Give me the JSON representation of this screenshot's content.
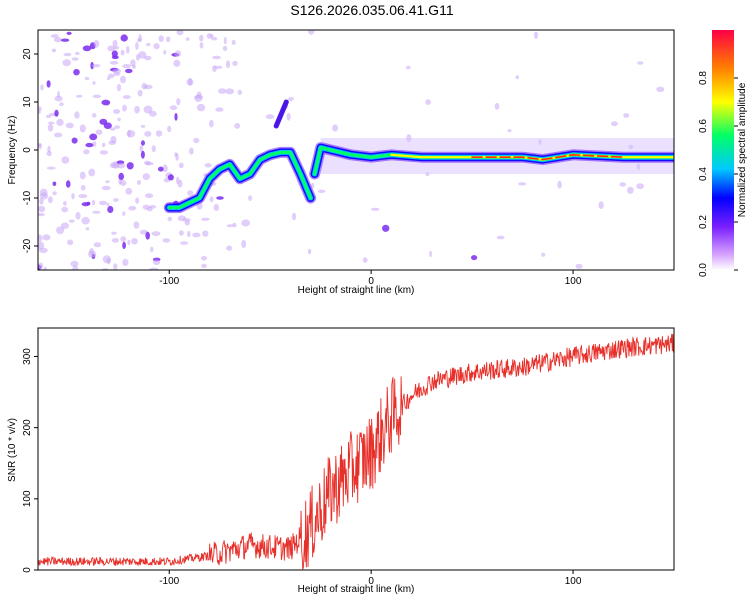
{
  "title": "S126.2026.035.06.41.G11",
  "chart_data": [
    {
      "type": "heatmap",
      "name": "spectrogram",
      "xlabel": "Height of straight line (km)",
      "ylabel": "Frequency (Hz)",
      "xlim": [
        -165,
        150
      ],
      "ylim": [
        -25,
        25
      ],
      "xticks": [
        -100,
        0,
        100
      ],
      "yticks": [
        -20,
        -10,
        0,
        10,
        20
      ],
      "colorbar": {
        "label": "Normalized spectral amplitude",
        "range": [
          0,
          1
        ],
        "ticks": [
          0.0,
          0.2,
          0.4,
          0.6,
          0.8
        ]
      },
      "ridge": {
        "x": [
          -100,
          -95,
          -90,
          -85,
          -80,
          -75,
          -70,
          -65,
          -60,
          -55,
          -50,
          -45,
          -40,
          -35,
          -30,
          -28,
          -25,
          -20,
          -10,
          0,
          10,
          25,
          50,
          75,
          85,
          100,
          125,
          150
        ],
        "y": [
          -12,
          -12,
          -11,
          -10,
          -6,
          -4,
          -3,
          -6,
          -5,
          -2,
          -1,
          -0.5,
          -0.5,
          -5,
          -10,
          -5,
          0.5,
          0,
          -1,
          -1.5,
          -1,
          -1.5,
          -1.5,
          -1.5,
          -2,
          -1,
          -1.5,
          -1.5
        ]
      }
    },
    {
      "type": "line",
      "name": "snr",
      "xlabel": "Height of straight line (km)",
      "ylabel": "SNR (10 * v/v)",
      "xlim": [
        -165,
        150
      ],
      "ylim": [
        0,
        340
      ],
      "xticks": [
        -100,
        0,
        100
      ],
      "yticks": [
        0,
        100,
        200,
        300
      ],
      "color": "#e8302a",
      "trend": {
        "x": [
          -165,
          -120,
          -100,
          -80,
          -60,
          -40,
          -30,
          -20,
          -10,
          0,
          10,
          20,
          30,
          50,
          75,
          100,
          125,
          150
        ],
        "y": [
          12,
          12,
          12,
          20,
          35,
          30,
          60,
          110,
          140,
          165,
          215,
          245,
          265,
          278,
          285,
          300,
          312,
          318
        ]
      }
    }
  ]
}
